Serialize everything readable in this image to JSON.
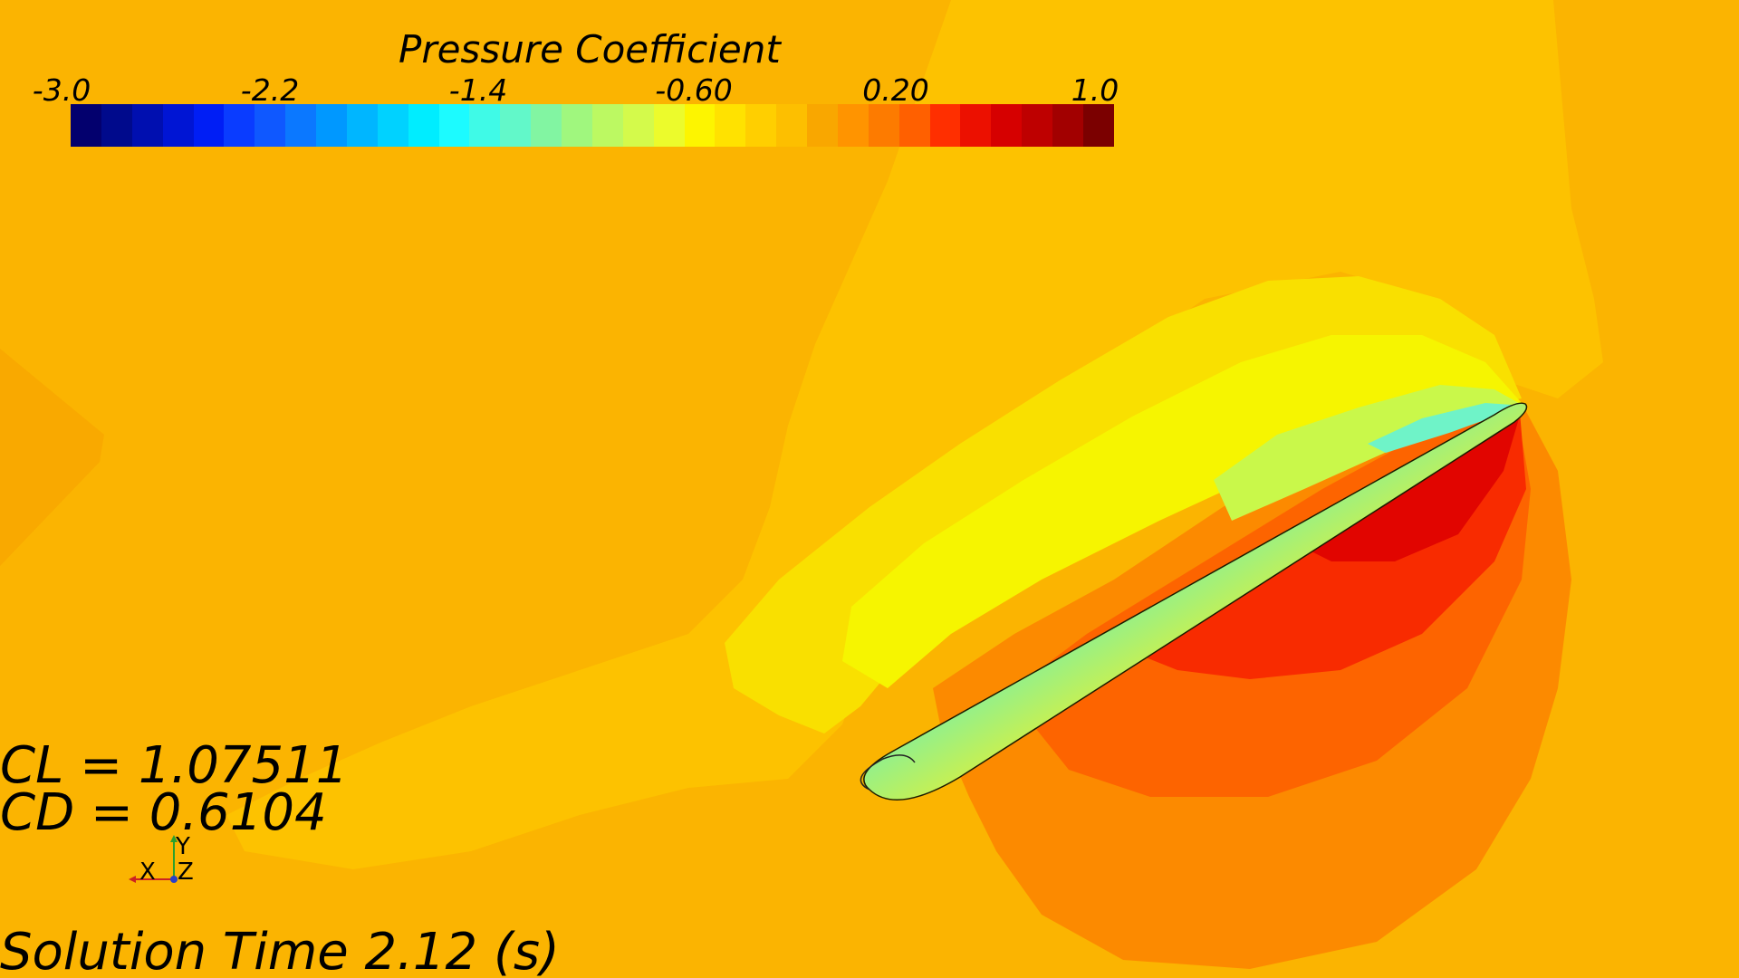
{
  "legend": {
    "title": "Pressure Coefficient",
    "tick_labels": [
      "-3.0",
      "-2.2",
      "-1.4",
      "-0.60",
      "0.20",
      "1.0"
    ],
    "min": -3.0,
    "max": 1.0,
    "colors": [
      "#03006e",
      "#000a8c",
      "#000fb0",
      "#0015d4",
      "#001ef5",
      "#0a3cff",
      "#0f58ff",
      "#0b78ff",
      "#0098ff",
      "#00b6ff",
      "#00d2ff",
      "#00edff",
      "#1cfbff",
      "#3ffae7",
      "#62f8c9",
      "#82f5a2",
      "#a0f77e",
      "#bcf962",
      "#d4fa4b",
      "#ecfb2c",
      "#fdf500",
      "#ffe200",
      "#ffcf00",
      "#fdbf00",
      "#f9a700",
      "#ff9400",
      "#fd7b00",
      "#ff6000",
      "#ff2f00",
      "#ec1000",
      "#d60000",
      "#be0000",
      "#a20000",
      "#7b0000"
    ]
  },
  "readouts": {
    "cl": "CL = 1.07511",
    "cd": "CD = 0.6104",
    "solution_time": "Solution Time 2.12 (s)"
  },
  "axis_triad": {
    "x": "X",
    "y": "Y",
    "z": "Z"
  },
  "field_colors": {
    "background": "#fbb401",
    "near_neutral": "#fdc200",
    "upper_light": "#f9e000",
    "upper_yellow": "#f6f500",
    "upper_green": "#c9f84a",
    "upper_cyan": "#6ff3c8",
    "lower_orange": "#fc8a00",
    "lower_deep": "#fd5e00",
    "lower_red": "#f82b00",
    "lower_darkred": "#e10500",
    "airfoil_body": "#f4b000"
  }
}
